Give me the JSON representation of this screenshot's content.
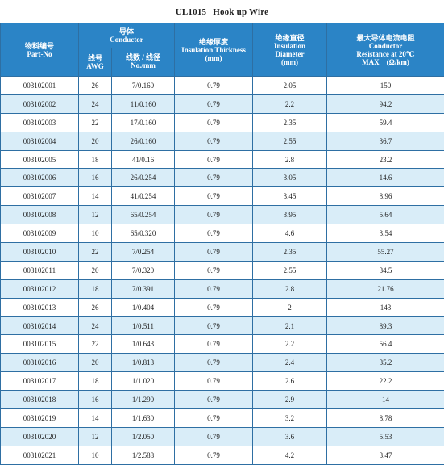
{
  "title": {
    "model": "UL1015",
    "name": "Hook up Wire"
  },
  "headers": {
    "part_no": {
      "cn": "物料编号",
      "en": "Part-No"
    },
    "conductor": {
      "cn": "导体",
      "en": "Conductor"
    },
    "awg": {
      "cn": "线号",
      "en": "AWG"
    },
    "strands": {
      "cn": "线数 / 线径",
      "en": "No./mm"
    },
    "insulation_thickness": {
      "cn": "绝缘厚度",
      "en": "Insulation Thickness",
      "unit": "(mm)"
    },
    "insulation_diameter": {
      "cn": "绝缘直径",
      "en1": "Insulation",
      "en2": "Diameter",
      "unit": "(mm)"
    },
    "resistance": {
      "cn": "最大导体电流电阻",
      "en1": "Conductor",
      "en2": "Resistance at 20℃",
      "en3": "MAX　(Ω/km)"
    }
  },
  "rows": [
    [
      "003102001",
      "26",
      "7/0.160",
      "0.79",
      "2.05",
      "150"
    ],
    [
      "003102002",
      "24",
      "11/0.160",
      "0.79",
      "2.2",
      "94.2"
    ],
    [
      "003102003",
      "22",
      "17/0.160",
      "0.79",
      "2.35",
      "59.4"
    ],
    [
      "003102004",
      "20",
      "26/0.160",
      "0.79",
      "2.55",
      "36.7"
    ],
    [
      "003102005",
      "18",
      "41/0.16",
      "0.79",
      "2.8",
      "23.2"
    ],
    [
      "003102006",
      "16",
      "26/0.254",
      "0.79",
      "3.05",
      "14.6"
    ],
    [
      "003102007",
      "14",
      "41/0.254",
      "0.79",
      "3.45",
      "8.96"
    ],
    [
      "003102008",
      "12",
      "65/0.254",
      "0.79",
      "3.95",
      "5.64"
    ],
    [
      "003102009",
      "10",
      "65/0.320",
      "0.79",
      "4.6",
      "3.54"
    ],
    [
      "003102010",
      "22",
      "7/0.254",
      "0.79",
      "2.35",
      "55.27"
    ],
    [
      "003102011",
      "20",
      "7/0.320",
      "0.79",
      "2.55",
      "34.5"
    ],
    [
      "003102012",
      "18",
      "7/0.391",
      "0.79",
      "2.8",
      "21.76"
    ],
    [
      "003102013",
      "26",
      "1/0.404",
      "0.79",
      "2",
      "143"
    ],
    [
      "003102014",
      "24",
      "1/0.511",
      "0.79",
      "2.1",
      "89.3"
    ],
    [
      "003102015",
      "22",
      "1/0.643",
      "0.79",
      "2.2",
      "56.4"
    ],
    [
      "003102016",
      "20",
      "1/0.813",
      "0.79",
      "2.4",
      "35.2"
    ],
    [
      "003102017",
      "18",
      "1/1.020",
      "0.79",
      "2.6",
      "22.2"
    ],
    [
      "003102018",
      "16",
      "1/1.290",
      "0.79",
      "2.9",
      "14"
    ],
    [
      "003102019",
      "14",
      "1/1.630",
      "0.79",
      "3.2",
      "8.78"
    ],
    [
      "003102020",
      "12",
      "1/2.050",
      "0.79",
      "3.6",
      "5.53"
    ],
    [
      "003102021",
      "10",
      "1/2.588",
      "0.79",
      "4.2",
      "3.47"
    ]
  ],
  "colors": {
    "header_bg": "#2b84c6",
    "stripe_bg": "#d9edf8",
    "border": "#2e6fa3"
  }
}
